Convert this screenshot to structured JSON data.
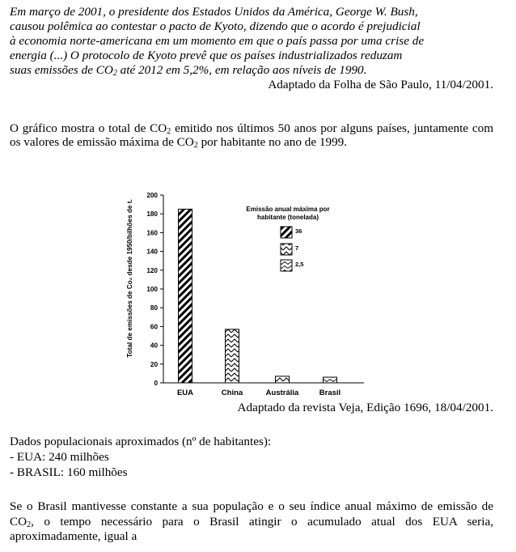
{
  "intro": {
    "line1": "Em março de 2001, o presidente dos Estados Unidos da América, George W. Bush,",
    "line2": "causou polêmica ao contestar o pacto de Kyoto, dizendo que o acordo é prejudicial",
    "line3": "à economia norte-americana em um momento em que o país passa por uma crise de",
    "line4": "energia (...) O protocolo de Kyoto prevê que os países industrializados reduzam",
    "line5_a": "suas emissões de CO",
    "line5_sub": "2",
    "line5_b": " até 2012 em 5,2%, em relação aos níveis de 1990.",
    "source": "Adaptado da Folha de São Paulo, 11/04/2001."
  },
  "chart_intro": {
    "a": "O gráfico mostra o total de CO",
    "sub1": "2",
    "b": " emitido nos últimos 50 anos por alguns países, juntamente com os valores de emissão máxima de CO",
    "sub2": "2",
    "c": " por habitante no ano de 1999."
  },
  "chart_data": {
    "type": "bar",
    "categories": [
      "EUA",
      "China",
      "Austrália",
      "Brasil"
    ],
    "values": [
      185,
      57,
      7,
      6
    ],
    "ylabel": "Total de emissões de Co₂ desde 1950/bilhões de t.",
    "ylim": [
      0,
      200
    ],
    "yticks": [
      "0",
      "20",
      "40",
      "60",
      "80",
      "100",
      "120",
      "140",
      "160",
      "180",
      "200"
    ],
    "legend_title_1": "Emissão anual máxima por",
    "legend_title_2": "habitante (tonelada)",
    "legend": [
      {
        "label": "36",
        "pattern": "diagonal"
      },
      {
        "label": "7",
        "pattern": "zigzag"
      },
      {
        "label": "2,5",
        "pattern": "wave"
      }
    ],
    "bar_patterns": [
      "diagonal",
      "zigzag",
      "zigzag",
      "wave"
    ],
    "legend_placement": "top-right"
  },
  "chart_source": "Adaptado da revista Veja, Edição 1696, 18/04/2001.",
  "pop": {
    "title": "Dados populacionais aproximados (nº de habitantes):",
    "eua": "- EUA: 240 milhões",
    "brasil": "- BRASIL: 160 milhões"
  },
  "question": {
    "a": "Se o Brasil mantivesse constante a sua população e o seu índice anual máximo de emissão de CO",
    "sub": "2",
    "b": ", o tempo necessário para o Brasil atingir o acumulado atual dos EUA seria, aproximadamente, igual a"
  }
}
